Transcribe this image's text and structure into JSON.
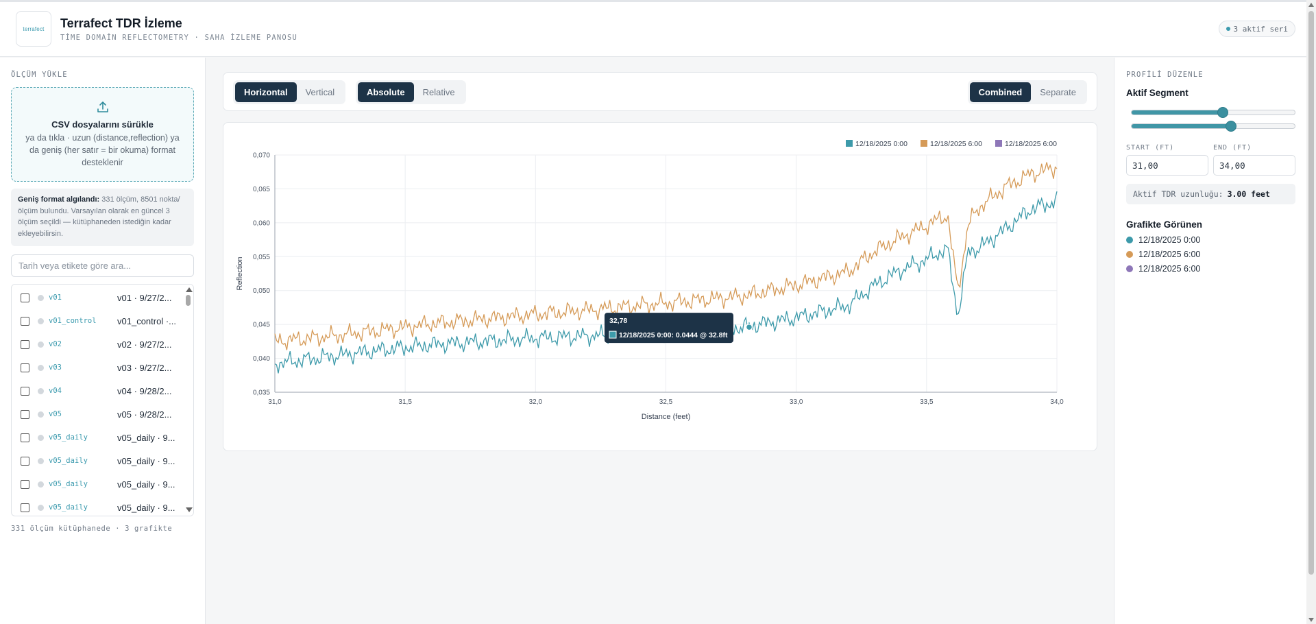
{
  "app": {
    "logo_text": "terrafect",
    "title": "Terrafect TDR İzleme",
    "subtitle": "TİME DOMAİN REFLECTOMETRY · SAHA İZLEME PANOSU",
    "active_series_badge": "3 aktif seri"
  },
  "sidebar": {
    "upload_label": "ÖLÇÜM YÜKLE",
    "dropzone_title": "CSV dosyalarını sürükle",
    "dropzone_desc": "ya da tıkla · uzun (distance,reflection) ya da geniş (her satır = bir okuma) format desteklenir",
    "info_bold": "Geniş format algılandı:",
    "info_text": "331 ölçüm, 8501 nokta/ölçüm bulundu. Varsayılan olarak en güncel 3 ölçüm seçildi — kütüphaneden istediğin kadar ekleyebilirsin.",
    "search_placeholder": "Tarih veya etikete göre ara...",
    "items": [
      {
        "code": "v01",
        "label": "v01 · 9/27/2..."
      },
      {
        "code": "v01_control",
        "label": "v01_control ·..."
      },
      {
        "code": "v02",
        "label": "v02 · 9/27/2..."
      },
      {
        "code": "v03",
        "label": "v03 · 9/27/2..."
      },
      {
        "code": "v04",
        "label": "v04 · 9/28/2..."
      },
      {
        "code": "v05",
        "label": "v05 · 9/28/2..."
      },
      {
        "code": "v05_daily",
        "label": "v05_daily · 9..."
      },
      {
        "code": "v05_daily",
        "label": "v05_daily · 9..."
      },
      {
        "code": "v05_daily",
        "label": "v05_daily · 9..."
      },
      {
        "code": "v05_daily",
        "label": "v05_daily · 9..."
      }
    ],
    "library_count": "331 ölçüm kütüphanede · 3 grafikte"
  },
  "toolbar": {
    "orientation": [
      "Horizontal",
      "Vertical"
    ],
    "orientation_selected": "Horizontal",
    "scale": [
      "Absolute",
      "Relative"
    ],
    "scale_selected": "Absolute",
    "layout": [
      "Combined",
      "Separate"
    ],
    "layout_selected": "Combined"
  },
  "tooltip": {
    "title": "32,78",
    "line": "12/18/2025 0:00: 0.0444 @ 32.8ft"
  },
  "right": {
    "edit_label": "PROFİLİ DÜZENLE",
    "segment_title": "Aktif Segment",
    "slider_start_fraction": 0.56,
    "slider_end_fraction": 0.61,
    "start_label": "START (FT)",
    "end_label": "END (FT)",
    "start_value": "31,00",
    "end_value": "34,00",
    "length_label": "Aktif TDR uzunluğu:",
    "length_value": "3.00 feet",
    "visible_title": "Grafikte Görünen",
    "visible": [
      "12/18/2025 0:00",
      "12/18/2025 6:00",
      "12/18/2025 6:00"
    ]
  },
  "colors": {
    "s0": "#3d9aaa",
    "s1": "#d59a57",
    "s2": "#8e77b8",
    "accent": "#1d3347"
  },
  "chart_data": {
    "type": "line",
    "xlabel": "Distance (feet)",
    "ylabel": "Reflection",
    "xlim": [
      31.0,
      34.0
    ],
    "ylim": [
      0.035,
      0.07
    ],
    "x_ticks": [
      "31,0",
      "31,5",
      "32,0",
      "32,5",
      "33,0",
      "33,5",
      "34,0"
    ],
    "y_ticks": [
      "0,035",
      "0,040",
      "0,045",
      "0,050",
      "0,055",
      "0,060",
      "0,065",
      "0,070"
    ],
    "grid": true,
    "legend_position": "top-right",
    "series": [
      {
        "name": "12/18/2025 0:00",
        "x": [
          31.0,
          31.2,
          31.4,
          31.6,
          31.8,
          32.0,
          32.2,
          32.4,
          32.6,
          32.8,
          33.0,
          33.2,
          33.3,
          33.4,
          33.5,
          33.58,
          33.62,
          33.66,
          33.7,
          33.8,
          33.9,
          34.0
        ],
        "y": [
          0.0392,
          0.0402,
          0.0412,
          0.042,
          0.0425,
          0.043,
          0.0433,
          0.0436,
          0.0441,
          0.0446,
          0.046,
          0.0478,
          0.0508,
          0.053,
          0.0546,
          0.0562,
          0.0462,
          0.0558,
          0.0562,
          0.059,
          0.062,
          0.0632
        ]
      },
      {
        "name": "12/18/2025 6:00",
        "x": [
          31.0,
          31.2,
          31.4,
          31.6,
          31.8,
          32.0,
          32.2,
          32.4,
          32.6,
          32.8,
          33.0,
          33.2,
          33.3,
          33.4,
          33.5,
          33.58,
          33.62,
          33.66,
          33.7,
          33.8,
          33.9,
          34.0
        ],
        "y": [
          0.0425,
          0.0432,
          0.0441,
          0.0451,
          0.0458,
          0.0465,
          0.0471,
          0.0478,
          0.0485,
          0.0492,
          0.0508,
          0.0528,
          0.0558,
          0.0578,
          0.0596,
          0.0612,
          0.0498,
          0.0598,
          0.0622,
          0.0652,
          0.0672,
          0.0682
        ]
      },
      {
        "name": "12/18/2025 6:00",
        "x": [],
        "y": []
      }
    ]
  }
}
